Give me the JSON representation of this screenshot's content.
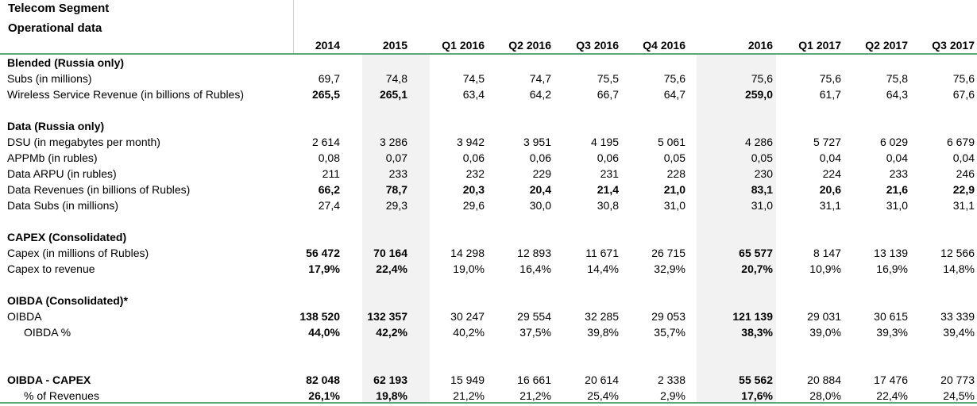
{
  "title_line1": "Telecom Segment",
  "title_line2": "Operational data",
  "columns": [
    "2014",
    "2015",
    "Q1 2016",
    "Q2 2016",
    "Q3 2016",
    "Q4 2016",
    "2016",
    "Q1 2017",
    "Q2 2017",
    "Q3 2017"
  ],
  "rows": [
    {
      "label": "Blended (Russia only)",
      "type": "section",
      "values": []
    },
    {
      "label": "Subs (in millions)",
      "type": "normal",
      "values": [
        "69,7",
        "74,8",
        "74,5",
        "74,7",
        "75,5",
        "75,6",
        "75,6",
        "75,6",
        "75,8",
        "75,6"
      ]
    },
    {
      "label": "Wireless Service Revenue (in billions of Rubles)",
      "type": "normal",
      "bold_cols": [
        0,
        1,
        6
      ],
      "values": [
        "265,5",
        "265,1",
        "63,4",
        "64,2",
        "66,7",
        "64,7",
        "259,0",
        "61,7",
        "64,3",
        "67,6"
      ]
    },
    {
      "label": "",
      "type": "blank",
      "values": []
    },
    {
      "label": "Data (Russia only)",
      "type": "section",
      "values": []
    },
    {
      "label": "DSU (in megabytes per month)",
      "type": "normal",
      "values": [
        "2 614",
        "3 286",
        "3 942",
        "3 951",
        "4 195",
        "5 061",
        "4 286",
        "5 727",
        "6 029",
        "6 679"
      ]
    },
    {
      "label": "APPMb (in rubles)",
      "type": "normal",
      "values": [
        "0,08",
        "0,07",
        "0,06",
        "0,06",
        "0,06",
        "0,05",
        "0,05",
        "0,04",
        "0,04",
        "0,04"
      ]
    },
    {
      "label": "Data ARPU (in rubles)",
      "type": "normal",
      "values": [
        "211",
        "233",
        "232",
        "229",
        "231",
        "228",
        "230",
        "224",
        "233",
        "246"
      ]
    },
    {
      "label": "Data Revenues (in billions of Rubles)",
      "type": "bold",
      "values": [
        "66,2",
        "78,7",
        "20,3",
        "20,4",
        "21,4",
        "21,0",
        "83,1",
        "20,6",
        "21,6",
        "22,9"
      ]
    },
    {
      "label": "Data Subs (in millions)",
      "type": "normal",
      "values": [
        "27,4",
        "29,3",
        "29,6",
        "30,0",
        "30,8",
        "31,0",
        "31,0",
        "31,1",
        "31,0",
        "31,1"
      ]
    },
    {
      "label": "",
      "type": "blank",
      "values": []
    },
    {
      "label": "CAPEX (Consolidated)",
      "type": "section",
      "values": []
    },
    {
      "label": "Capex  (in millions of Rubles)",
      "type": "normal",
      "bold_cols": [
        0,
        1,
        6
      ],
      "values": [
        "56 472",
        "70 164",
        "14 298",
        "12 893",
        "11 671",
        "26 715",
        "65 577",
        "8 147",
        "13 139",
        "12 566"
      ]
    },
    {
      "label": "Capex to revenue",
      "type": "normal",
      "bold_cols": [
        0,
        1,
        6
      ],
      "values": [
        "17,9%",
        "22,4%",
        "19,0%",
        "16,4%",
        "14,4%",
        "32,9%",
        "20,7%",
        "10,9%",
        "16,9%",
        "14,8%"
      ]
    },
    {
      "label": "",
      "type": "blank",
      "values": []
    },
    {
      "label": "OIBDA (Consolidated)*",
      "type": "section",
      "values": []
    },
    {
      "label": "OIBDA",
      "type": "normal",
      "bold_cols": [
        0,
        1,
        6
      ],
      "values": [
        "138 520",
        "132 357",
        "30 247",
        "29 554",
        "32 285",
        "29 053",
        "121 139",
        "29 031",
        "30 615",
        "33 339"
      ]
    },
    {
      "label": "OIBDA %",
      "type": "indent",
      "bold_cols": [
        0,
        1,
        6
      ],
      "values": [
        "44,0%",
        "42,2%",
        "40,2%",
        "37,5%",
        "39,8%",
        "35,7%",
        "38,3%",
        "39,0%",
        "39,3%",
        "39,4%"
      ]
    },
    {
      "label": "",
      "type": "blank",
      "values": []
    },
    {
      "label": "",
      "type": "blank",
      "values": []
    },
    {
      "label": "OIBDA - CAPEX",
      "type": "section",
      "bold_cols": [
        0,
        1,
        6
      ],
      "values": [
        "82 048",
        "62 193",
        "15 949",
        "16 661",
        "20 614",
        "2 338",
        "55 562",
        "20 884",
        "17 476",
        "20 773"
      ]
    },
    {
      "label": "% of Revenues",
      "type": "indent",
      "bold_cols": [
        0,
        1,
        6
      ],
      "values": [
        "26,1%",
        "19,8%",
        "21,2%",
        "21,2%",
        "25,4%",
        "2,9%",
        "17,6%",
        "28,0%",
        "22,4%",
        "24,5%"
      ]
    }
  ]
}
